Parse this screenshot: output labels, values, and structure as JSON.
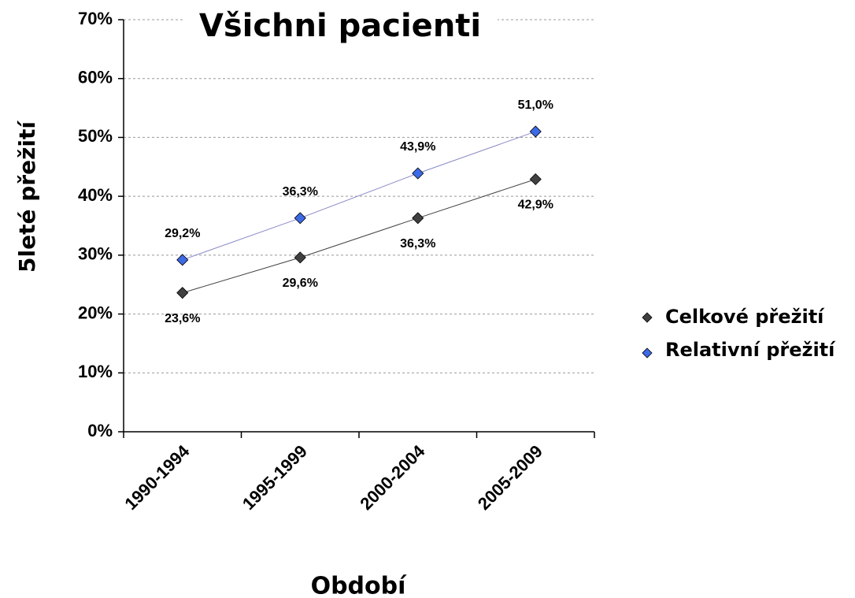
{
  "chart_data": {
    "type": "line",
    "title": "Všichni pacienti",
    "x_label": "Období",
    "y_label": "5leté přežití",
    "categories": [
      "1990-1994",
      "1995-1999",
      "2000-2004",
      "2005-2009"
    ],
    "series": [
      {
        "name": "Celkové přežití",
        "color": "#404040",
        "line_color": "#404040",
        "values": [
          23.6,
          29.6,
          36.3,
          42.9
        ],
        "value_labels": [
          "23,6%",
          "29,6%",
          "36,3%",
          "42,9%"
        ]
      },
      {
        "name": "Relativní přežití",
        "color": "#3d6ae6",
        "line_color": "#8a8ac8",
        "values": [
          29.2,
          36.3,
          43.9,
          51.0
        ],
        "value_labels": [
          "29,2%",
          "36,3%",
          "43,9%",
          "51,0%"
        ]
      }
    ],
    "ylim": [
      0,
      70
    ],
    "yticks": [
      {
        "value": 0,
        "label": "0%"
      },
      {
        "value": 10,
        "label": "10%"
      },
      {
        "value": 20,
        "label": "20%"
      },
      {
        "value": 30,
        "label": "30%"
      },
      {
        "value": 40,
        "label": "40%"
      },
      {
        "value": 50,
        "label": "50%"
      },
      {
        "value": 60,
        "label": "60%"
      },
      {
        "value": 70,
        "label": "70%"
      }
    ],
    "grid": true,
    "legend": "right"
  }
}
